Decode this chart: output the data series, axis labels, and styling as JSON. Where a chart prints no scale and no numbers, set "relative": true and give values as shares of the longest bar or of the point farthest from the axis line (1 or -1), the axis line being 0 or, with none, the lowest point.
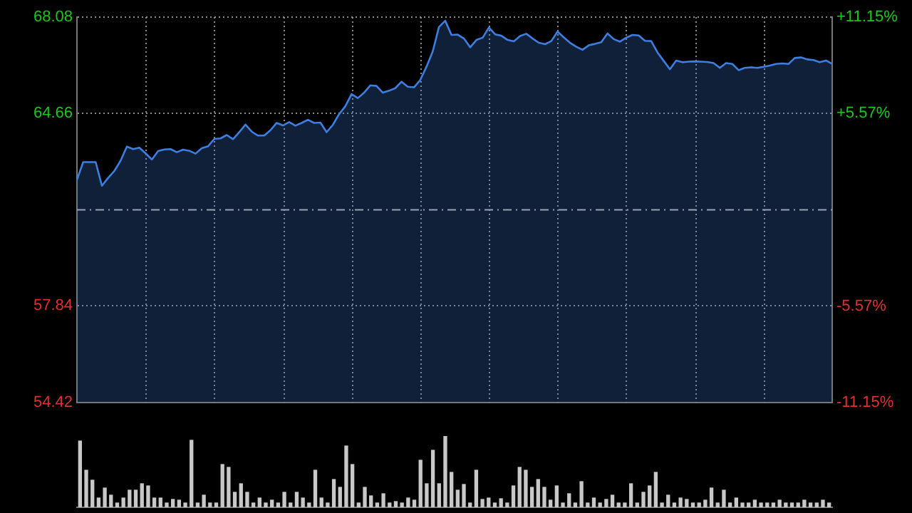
{
  "chart_data": [
    {
      "type": "area",
      "categories": [
        null,
        null,
        null,
        null,
        null,
        null,
        null,
        null,
        null,
        null,
        null,
        null,
        null,
        null,
        null,
        null,
        null,
        null,
        null,
        null,
        null,
        null,
        null,
        null,
        null,
        null,
        null,
        null,
        null,
        null,
        null,
        null,
        null,
        null,
        null,
        null,
        null,
        null,
        null,
        null,
        null,
        null,
        null,
        null,
        null,
        null,
        null,
        null,
        null,
        null,
        null,
        null,
        null,
        null,
        null,
        null,
        null,
        null,
        null,
        null,
        null,
        null,
        null,
        null,
        null,
        null,
        null,
        null,
        null,
        null,
        null,
        null,
        null,
        null,
        null,
        null,
        null,
        null,
        null,
        null,
        null,
        null,
        null,
        null,
        null,
        null,
        null,
        null,
        null,
        null,
        null,
        null,
        null,
        null,
        null,
        null,
        null,
        null,
        null,
        null,
        null,
        null,
        null,
        null,
        null,
        null,
        null,
        null,
        null,
        null,
        null,
        null,
        null,
        null,
        null,
        null,
        null,
        null,
        null,
        null,
        null,
        null
      ],
      "ylim": [
        54.42,
        68.08
      ],
      "yticks": [
        54.42,
        57.84,
        64.66,
        68.08
      ],
      "y2lim": [
        -11.15,
        11.15
      ],
      "y2ticks": [
        {
          "value": -11.15,
          "label": "-11.15%"
        },
        {
          "value": -5.57,
          "label": "-5.57%"
        },
        {
          "value": 5.57,
          "label": "+5.57%"
        },
        {
          "value": 11.15,
          "label": "+11.15%"
        }
      ],
      "grid": true,
      "ref_lines": [
        {
          "axis": "y",
          "value": 61.25,
          "color": "#9aa4b0",
          "line_style": "dashed"
        }
      ],
      "series": [
        {
          "color": "#3d7fe0",
          "values": [
            62.31,
            62.94,
            62.94,
            62.94,
            62.1,
            62.38,
            62.63,
            62.99,
            63.49,
            63.4,
            63.45,
            63.25,
            63.03,
            63.33,
            63.39,
            63.4,
            63.29,
            63.38,
            63.34,
            63.24,
            63.43,
            63.5,
            63.76,
            63.78,
            63.9,
            63.75,
            64.0,
            64.27,
            64.02,
            63.88,
            63.88,
            64.07,
            64.33,
            64.24,
            64.36,
            64.23,
            64.33,
            64.44,
            64.33,
            64.34,
            64.0,
            64.26,
            64.64,
            64.92,
            65.35,
            65.21,
            65.4,
            65.66,
            65.64,
            65.4,
            65.47,
            65.56,
            65.79,
            65.61,
            65.59,
            65.85,
            66.32,
            66.86,
            67.73,
            67.95,
            67.45,
            67.46,
            67.32,
            67.01,
            67.27,
            67.35,
            67.71,
            67.47,
            67.42,
            67.27,
            67.22,
            67.41,
            67.49,
            67.32,
            67.17,
            67.12,
            67.23,
            67.57,
            67.36,
            67.17,
            67.03,
            66.92,
            67.08,
            67.13,
            67.19,
            67.5,
            67.3,
            67.21,
            67.35,
            67.45,
            67.43,
            67.24,
            67.23,
            66.83,
            66.53,
            66.23,
            66.54,
            66.48,
            66.5,
            66.51,
            66.5,
            66.49,
            66.45,
            66.28,
            66.45,
            66.42,
            66.2,
            66.28,
            66.3,
            66.28,
            66.32,
            66.36,
            66.42,
            66.44,
            66.42,
            66.63,
            66.65,
            66.58,
            66.56,
            66.48,
            66.54,
            66.42
          ]
        }
      ]
    },
    {
      "type": "bar",
      "relative": true,
      "color": "#c8c8c8",
      "categories": [
        null,
        null,
        null,
        null,
        null,
        null,
        null,
        null,
        null,
        null,
        null,
        null,
        null,
        null,
        null,
        null,
        null,
        null,
        null,
        null,
        null,
        null,
        null,
        null,
        null,
        null,
        null,
        null,
        null,
        null,
        null,
        null,
        null,
        null,
        null,
        null,
        null,
        null,
        null,
        null,
        null,
        null,
        null,
        null,
        null,
        null,
        null,
        null,
        null,
        null,
        null,
        null,
        null,
        null,
        null,
        null,
        null,
        null,
        null,
        null,
        null,
        null,
        null,
        null,
        null,
        null,
        null,
        null,
        null,
        null,
        null,
        null,
        null,
        null,
        null,
        null,
        null,
        null,
        null,
        null,
        null,
        null,
        null,
        null,
        null,
        null,
        null,
        null,
        null,
        null,
        null,
        null,
        null,
        null,
        null,
        null,
        null,
        null,
        null,
        null,
        null,
        null,
        null,
        null,
        null,
        null,
        null,
        null,
        null,
        null,
        null,
        null,
        null,
        null,
        null,
        null,
        null,
        null,
        null,
        null,
        null,
        null
      ],
      "values": [
        0.93,
        0.52,
        0.38,
        0.13,
        0.27,
        0.17,
        0.06,
        0.13,
        0.24,
        0.24,
        0.33,
        0.3,
        0.13,
        0.13,
        0.06,
        0.11,
        0.1,
        0.06,
        0.94,
        0.06,
        0.17,
        0.06,
        0.06,
        0.6,
        0.56,
        0.21,
        0.33,
        0.21,
        0.06,
        0.13,
        0.06,
        0.1,
        0.06,
        0.21,
        0.06,
        0.21,
        0.13,
        0.06,
        0.52,
        0.13,
        0.06,
        0.39,
        0.28,
        0.86,
        0.6,
        0.06,
        0.28,
        0.16,
        0.06,
        0.19,
        0.06,
        0.08,
        0.06,
        0.13,
        0.1,
        0.66,
        0.33,
        0.8,
        0.33,
        1,
        0.49,
        0.24,
        0.32,
        0.06,
        0.52,
        0.11,
        0.13,
        0.06,
        0.12,
        0.06,
        0.3,
        0.56,
        0.52,
        0.28,
        0.39,
        0.28,
        0.1,
        0.3,
        0.06,
        0.19,
        0.06,
        0.36,
        0.06,
        0.13,
        0.06,
        0.11,
        0.17,
        0.06,
        0.06,
        0.33,
        0.06,
        0.21,
        0.3,
        0.49,
        0.06,
        0.17,
        0.06,
        0.13,
        0.11,
        0.06,
        0.06,
        0.1,
        0.27,
        0.06,
        0.24,
        0.06,
        0.13,
        0.06,
        0.06,
        0.1,
        0.06,
        0.06,
        0.06,
        0.1,
        0.06,
        0.06,
        0.06,
        0.1,
        0.06,
        0.06,
        0.1,
        0.06
      ]
    }
  ]
}
